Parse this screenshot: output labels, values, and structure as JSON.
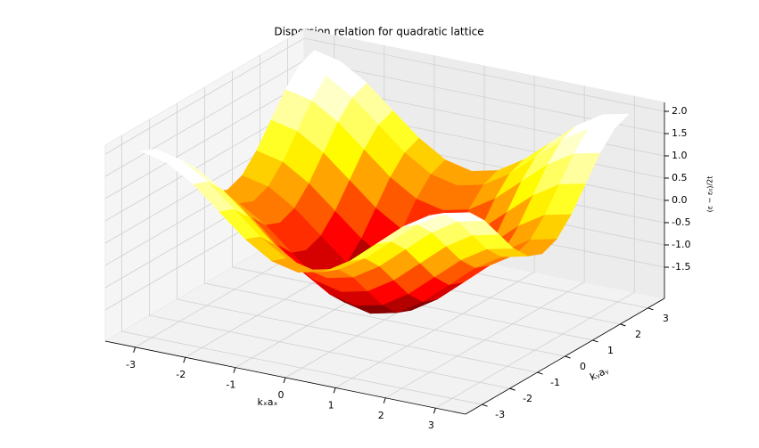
{
  "chart_data": {
    "type": "surface3d",
    "title": "Dispersion relation for quadratic lattice",
    "xlabel": "kₓaₓ",
    "ylabel": "kᵧaᵧ",
    "zlabel": "(ε − ε₀)/2t",
    "colormap": "hot",
    "x": [
      -3.142,
      -2.618,
      -2.094,
      -1.571,
      -1.047,
      -0.524,
      0,
      0.524,
      1.047,
      1.571,
      2.094,
      2.618,
      3.142
    ],
    "y": [
      -3.142,
      -2.618,
      -2.094,
      -1.571,
      -1.047,
      -0.524,
      0,
      0.524,
      1.047,
      1.571,
      2.094,
      2.618,
      3.142
    ],
    "z": [
      [
        2,
        1.866,
        1.5,
        1,
        0.5,
        0.134,
        0,
        0.134,
        0.5,
        1,
        1.5,
        1.866,
        2
      ],
      [
        1.866,
        1.732,
        1.366,
        0.866,
        0.366,
        0,
        -0.134,
        0,
        0.366,
        0.866,
        1.366,
        1.732,
        1.866
      ],
      [
        1.5,
        1.366,
        1,
        0.5,
        0,
        -0.366,
        -0.5,
        -0.366,
        0,
        0.5,
        1,
        1.366,
        1.5
      ],
      [
        1,
        0.866,
        0.5,
        0,
        -0.5,
        -0.866,
        -1,
        -0.866,
        -0.5,
        0,
        0.5,
        0.866,
        1
      ],
      [
        0.5,
        0.366,
        0,
        -0.5,
        -1,
        -1.366,
        -1.5,
        -1.366,
        -1,
        -0.5,
        0,
        0.366,
        0.5
      ],
      [
        0.134,
        0,
        -0.366,
        -0.866,
        -1.366,
        -1.732,
        -1.866,
        -1.732,
        -1.366,
        -0.866,
        -0.366,
        0,
        0.134
      ],
      [
        0,
        -0.134,
        -0.5,
        -1,
        -1.5,
        -1.866,
        -2,
        -1.866,
        -1.5,
        -1,
        -0.5,
        -0.134,
        0
      ],
      [
        0.134,
        0,
        -0.366,
        -0.866,
        -1.366,
        -1.732,
        -1.866,
        -1.732,
        -1.366,
        -0.866,
        -0.366,
        0,
        0.134
      ],
      [
        0.5,
        0.366,
        0,
        -0.5,
        -1,
        -1.366,
        -1.5,
        -1.366,
        -1,
        -0.5,
        0,
        0.366,
        0.5
      ],
      [
        1,
        0.866,
        0.5,
        0,
        -0.5,
        -0.866,
        -1,
        -0.866,
        -0.5,
        0,
        0.5,
        0.866,
        1
      ],
      [
        1.5,
        1.366,
        1,
        0.5,
        0,
        -0.366,
        -0.5,
        -0.366,
        0,
        0.5,
        1,
        1.366,
        1.5
      ],
      [
        1.866,
        1.732,
        1.366,
        0.866,
        0.366,
        0,
        -0.134,
        0,
        0.366,
        0.866,
        1.366,
        1.732,
        1.866
      ],
      [
        2,
        1.866,
        1.5,
        1,
        0.5,
        0.134,
        0,
        0.134,
        0.5,
        1,
        1.5,
        1.866,
        2
      ]
    ],
    "xlim": [
      -3.6,
      3.6
    ],
    "ylim": [
      -3.6,
      3.6
    ],
    "zlim": [
      -2.2,
      2.2
    ],
    "xticks": [
      -3,
      -2,
      -1,
      0,
      1,
      2,
      3
    ],
    "yticks": [
      -3,
      -2,
      -1,
      0,
      1,
      2,
      3
    ],
    "zticks": [
      {
        "value": 2,
        "label": "2.0"
      },
      1.5,
      {
        "value": 1,
        "label": "1.0"
      },
      0.5,
      {
        "value": 0,
        "label": "0.0"
      },
      -0.5,
      {
        "value": -1,
        "label": "-1.0"
      },
      -1.5
    ],
    "grid": true
  }
}
